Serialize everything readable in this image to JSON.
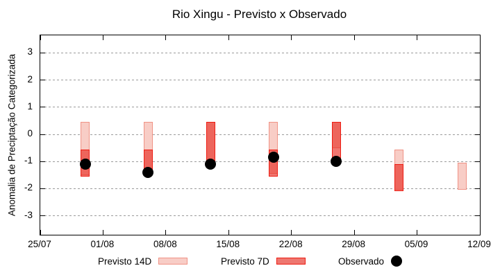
{
  "title": "Rio Xingu - Previsto x Observado",
  "legend": {
    "items": [
      {
        "label": "Previsto 14D",
        "symbol": "pink-box"
      },
      {
        "label": "Previsto 7D",
        "symbol": "red-box"
      },
      {
        "label": "Observado",
        "symbol": "black-dot"
      }
    ]
  },
  "colors": {
    "forecast14_fill": "#f8cdc6",
    "forecast14_border": "#f09285",
    "forecast7_fill": "rgba(230,45,35,0.65)",
    "forecast7_legend_fill": "#ee7770",
    "forecast7_border": "#ee1c12",
    "observed": "#000000",
    "grid": "#9a9a9a",
    "frame": "#000000"
  },
  "chart_data": {
    "type": "bar",
    "subtype": "range-bars-with-scatter",
    "title": "Rio Xingu - Previsto x Observado",
    "xlabel": "",
    "ylabel": "Anomalia de Preciptação Categorizada",
    "ylim": [
      -3.7,
      3.65
    ],
    "yticks": [
      3,
      2,
      1,
      0,
      -1,
      -2,
      -3
    ],
    "xlim_days": [
      0,
      49
    ],
    "xticks": [
      {
        "label": "25/07",
        "day": 0
      },
      {
        "label": "01/08",
        "day": 7
      },
      {
        "label": "08/08",
        "day": 14
      },
      {
        "label": "15/08",
        "day": 21
      },
      {
        "label": "22/08",
        "day": 28
      },
      {
        "label": "29/08",
        "day": 35
      },
      {
        "label": "05/09",
        "day": 42
      },
      {
        "label": "12/09",
        "day": 49
      }
    ],
    "grid": true,
    "legend_position": "bottom",
    "series": [
      {
        "name": "Previsto 14D",
        "type": "range-bar",
        "points": [
          {
            "date": "30/07",
            "day": 5,
            "hi": 0.45,
            "lo": -1.5
          },
          {
            "date": "06/08",
            "day": 12,
            "hi": 0.45,
            "lo": -1.45
          },
          {
            "date": "13/08",
            "day": 19,
            "hi": 0.45,
            "lo": -1.1
          },
          {
            "date": "20/08",
            "day": 26,
            "hi": 0.45,
            "lo": -1.45
          },
          {
            "date": "27/08",
            "day": 33,
            "hi": 0.45,
            "lo": -0.5
          },
          {
            "date": "03/09",
            "day": 40,
            "hi": -0.55,
            "lo": -2.05
          },
          {
            "date": "10/09",
            "day": 47,
            "hi": -1.05,
            "lo": -2.05
          }
        ]
      },
      {
        "name": "Previsto 7D",
        "type": "range-bar",
        "points": [
          {
            "date": "30/07",
            "day": 5,
            "hi": -0.55,
            "lo": -1.55
          },
          {
            "date": "06/08",
            "day": 12,
            "hi": -0.55,
            "lo": -1.45
          },
          {
            "date": "13/08",
            "day": 19,
            "hi": 0.45,
            "lo": -1.1
          },
          {
            "date": "20/08",
            "day": 26,
            "hi": -0.55,
            "lo": -1.55
          },
          {
            "date": "27/08",
            "day": 33,
            "hi": 0.45,
            "lo": -0.95
          },
          {
            "date": "03/09",
            "day": 40,
            "hi": -1.1,
            "lo": -2.1
          }
        ]
      },
      {
        "name": "Observado",
        "type": "scatter",
        "points": [
          {
            "date": "30/07",
            "day": 5,
            "value": -1.1
          },
          {
            "date": "06/08",
            "day": 12,
            "value": -1.4
          },
          {
            "date": "13/08",
            "day": 19,
            "value": -1.1
          },
          {
            "date": "20/08",
            "day": 26,
            "value": -0.85
          },
          {
            "date": "27/08",
            "day": 33,
            "value": -1.0
          }
        ]
      }
    ]
  }
}
